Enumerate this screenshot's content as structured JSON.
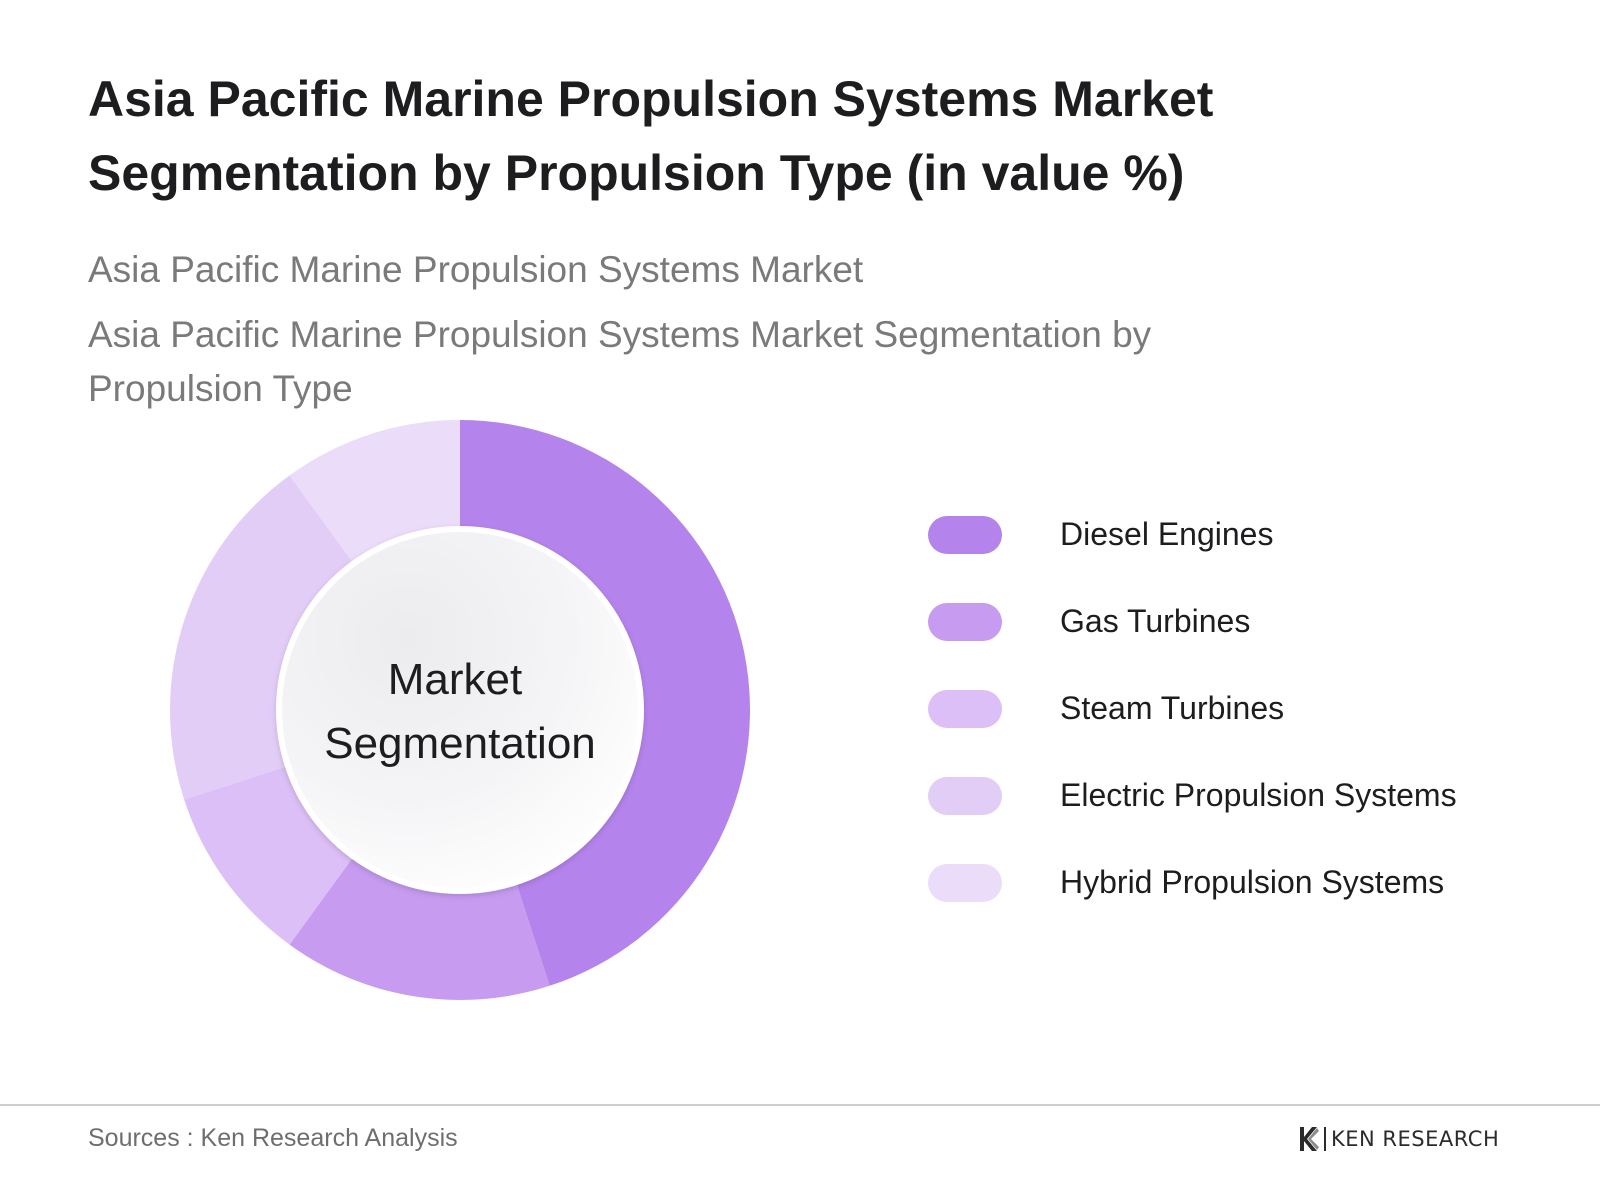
{
  "header": {
    "title": "Asia Pacific Marine Propulsion Systems Market Segmentation by Propulsion Type (in value %)",
    "subtitle_1": "Asia Pacific Marine Propulsion Systems Market",
    "subtitle_2": "Asia Pacific Marine Propulsion Systems Market Segmentation by Propulsion Type"
  },
  "chart_data": {
    "type": "pie",
    "style": "donut",
    "title": "Asia Pacific Marine Propulsion Systems Market Segmentation by Propulsion Type (in value %)",
    "center_label": [
      "Market",
      "Segmentation"
    ],
    "legend_position": "right",
    "categories": [
      "Diesel Engines",
      "Gas Turbines",
      "Steam Turbines",
      "Electric Propulsion Systems",
      "Hybrid Propulsion Systems"
    ],
    "values": [
      45,
      15,
      10,
      20,
      10
    ],
    "colors": [
      "#b484ec",
      "#c69bf0",
      "#dbbff6",
      "#e2cdf7",
      "#ebdcfa"
    ]
  },
  "footer": {
    "source": "Sources : Ken Research Analysis",
    "brand": "KEN RESEARCH"
  }
}
